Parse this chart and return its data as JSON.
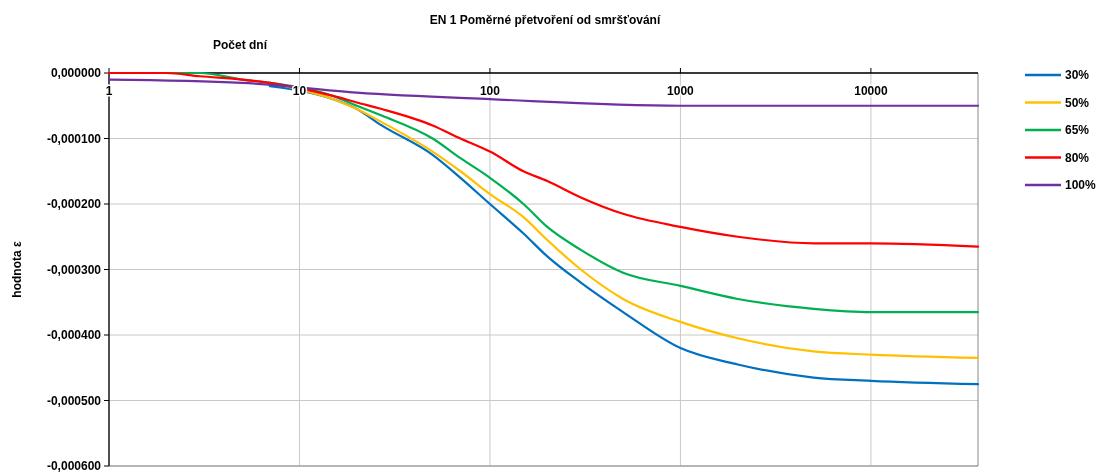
{
  "chart_data": {
    "type": "line",
    "title": "EN 1 Poměrné přetvoření od smršťování",
    "xlabel": "Počet dní",
    "ylabel": "hodnota ε",
    "log": "x",
    "grid": true,
    "legend": "right",
    "line_style": "solid",
    "marker": "none",
    "x": [
      1,
      2,
      3,
      5,
      7,
      15,
      20,
      27,
      50,
      70,
      100,
      150,
      200,
      300,
      500,
      1000,
      2000,
      5000,
      10000,
      36500
    ],
    "xlim": [
      1,
      36500
    ],
    "xticks": [
      1,
      10,
      100,
      1000,
      10000
    ],
    "ylim": [
      -0.0006,
      0
    ],
    "yticks": [
      {
        "value": 0,
        "label": "0,000000"
      },
      {
        "value": -0.0001,
        "label": "-0,000100"
      },
      {
        "value": -0.0002,
        "label": "-0,000200"
      },
      {
        "value": -0.0003,
        "label": "-0,000300"
      },
      {
        "value": -0.0004,
        "label": "-0,000400"
      },
      {
        "value": -0.0005,
        "label": "-0,000500"
      },
      {
        "value": -0.0006,
        "label": "-0,000600"
      }
    ],
    "series": [
      {
        "name": "30%",
        "color": "#0070c0",
        "values": [
          null,
          null,
          null,
          null,
          -2e-05,
          -4e-05,
          -5.5e-05,
          -8e-05,
          -0.000125,
          -0.00016,
          -0.0002,
          -0.000245,
          -0.00028,
          -0.00032,
          -0.000365,
          -0.00042,
          -0.000445,
          -0.000465,
          -0.00047,
          -0.000475
        ]
      },
      {
        "name": "50%",
        "color": "#ffc000",
        "values": [
          null,
          null,
          null,
          null,
          -1.5e-05,
          -4e-05,
          -5.5e-05,
          -7.5e-05,
          -0.00012,
          -0.00015,
          -0.000185,
          -0.00022,
          -0.000255,
          -0.0003,
          -0.000345,
          -0.00038,
          -0.000405,
          -0.000425,
          -0.00043,
          -0.000435
        ]
      },
      {
        "name": "65%",
        "color": "#00b050",
        "values": [
          0,
          0,
          0,
          -1e-05,
          -1.5e-05,
          -3.5e-05,
          -5e-05,
          -6.5e-05,
          -0.0001,
          -0.00013,
          -0.00016,
          -0.0002,
          -0.000235,
          -0.00027,
          -0.000305,
          -0.000325,
          -0.000345,
          -0.00036,
          -0.000365,
          -0.000365
        ]
      },
      {
        "name": "80%",
        "color": "#ff0000",
        "values": [
          0,
          0,
          -5e-06,
          -1e-05,
          -1.5e-05,
          -3.5e-05,
          -4.5e-05,
          -5.5e-05,
          -8e-05,
          -0.0001,
          -0.00012,
          -0.00015,
          -0.000165,
          -0.00019,
          -0.000215,
          -0.000235,
          -0.00025,
          -0.00026,
          -0.00026,
          -0.000265
        ]
      },
      {
        "name": "100%",
        "color": "#7030a0",
        "x": [
          1,
          5,
          20,
          100,
          1000,
          36500
        ],
        "values": [
          -1e-05,
          -1.5e-05,
          -3e-05,
          -4e-05,
          -5e-05,
          -5e-05
        ]
      }
    ]
  }
}
